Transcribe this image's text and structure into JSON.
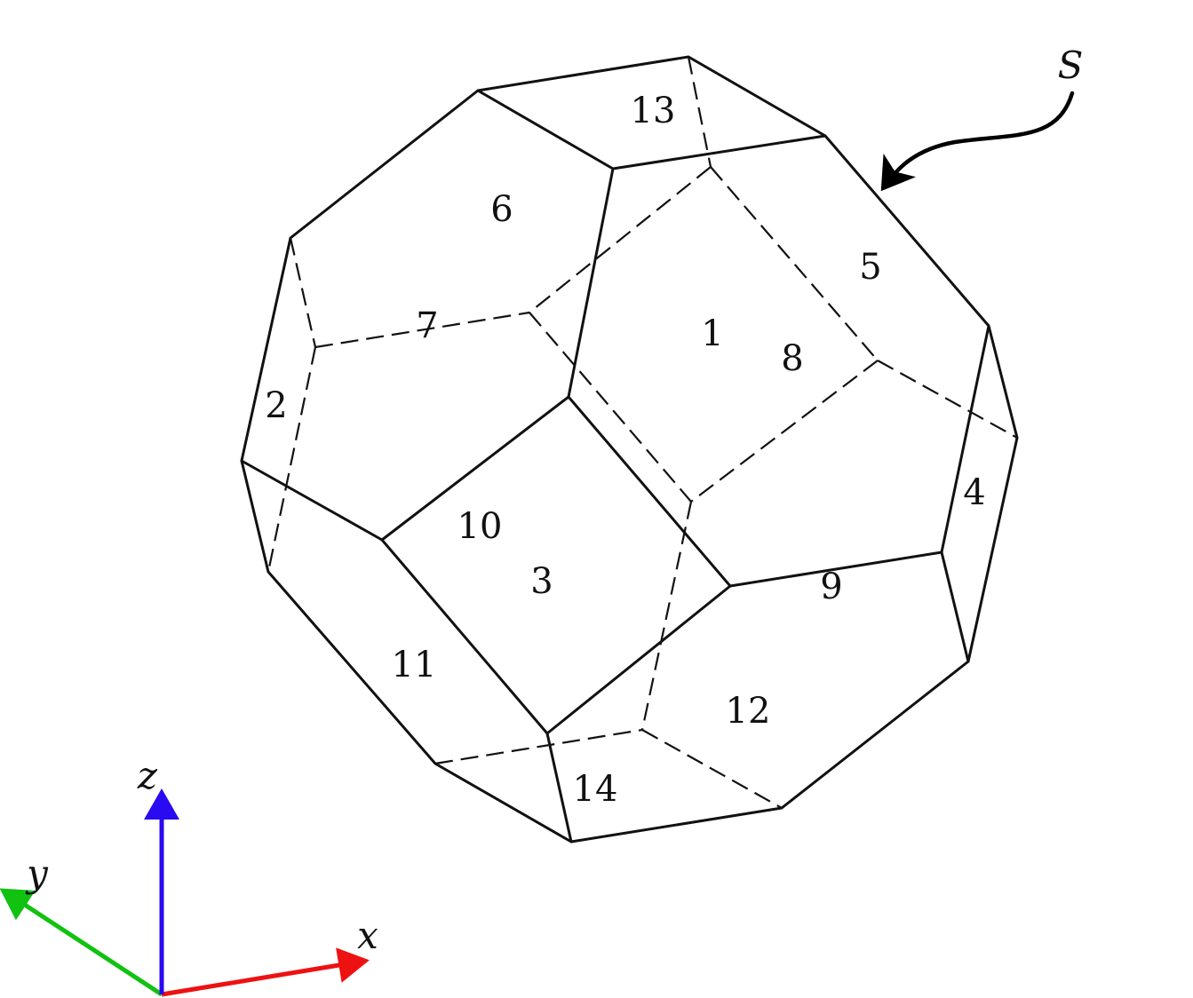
{
  "surface_label": "S",
  "face_labels": [
    "1",
    "2",
    "3",
    "4",
    "5",
    "6",
    "7",
    "8",
    "9",
    "10",
    "11",
    "12",
    "13",
    "14"
  ],
  "axes": {
    "x": {
      "label": "x",
      "color": "#ee1111"
    },
    "y": {
      "label": "y",
      "color": "#11c211"
    },
    "z": {
      "label": "z",
      "color": "#2a0af0"
    }
  }
}
